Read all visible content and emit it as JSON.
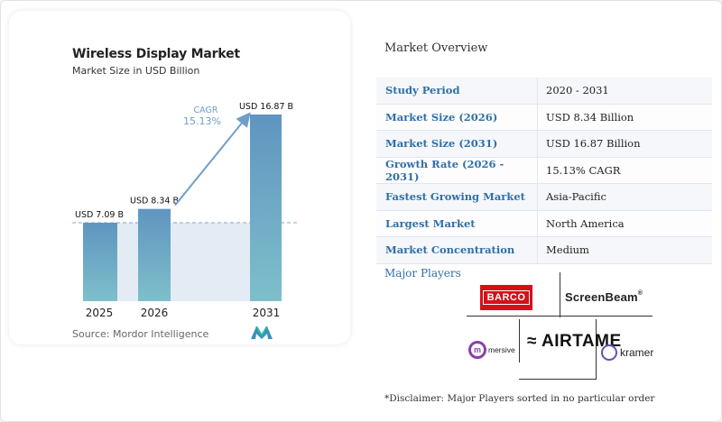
{
  "chart_data": {
    "type": "bar",
    "title": "Wireless Display Market",
    "subtitle": "Market Size in USD Billion",
    "categories": [
      "2025",
      "2026",
      "2031"
    ],
    "values": [
      7.09,
      8.34,
      16.87
    ],
    "data_labels": [
      "USD 7.09 B",
      "USD 8.34 B",
      "USD 16.87 B"
    ],
    "cagr_label": "CAGR",
    "cagr_value": "15.13%",
    "reference_line_value": 7.09,
    "ylim": [
      0,
      18
    ],
    "grid": false,
    "colors": {
      "bar_top": "#5f95c0",
      "bar_bottom": "#7ebfcb",
      "shade": "#e3ecf5",
      "arrow": "#6f9ec8",
      "cagr_text": "#6f9ec8",
      "dashed": "#8aa6c4"
    }
  },
  "source": "Source: Mordor Intelligence",
  "overview": {
    "title": "Market Overview",
    "rows": [
      {
        "key": "Study Period",
        "value": "2020 - 2031"
      },
      {
        "key": "Market Size (2026)",
        "value": "USD 8.34 Billion"
      },
      {
        "key": "Market Size (2031)",
        "value": "USD 16.87 Billion"
      },
      {
        "key": "Growth Rate (2026 - 2031)",
        "value": "15.13% CAGR"
      },
      {
        "key": "Fastest Growing Market",
        "value": "Asia-Pacific"
      },
      {
        "key": "Largest Market",
        "value": "North America"
      },
      {
        "key": "Market Concentration",
        "value": "Medium"
      }
    ]
  },
  "players": {
    "title": "Major Players",
    "logos": {
      "barco": "BARCO",
      "screenbeam": "ScreenBeam",
      "airtame": "≈ AIRTAME",
      "mersive_mark": "m",
      "mersive": "mersive",
      "kramer": "kramer"
    }
  },
  "disclaimer": "*Disclaimer: Major Players sorted in no particular order"
}
